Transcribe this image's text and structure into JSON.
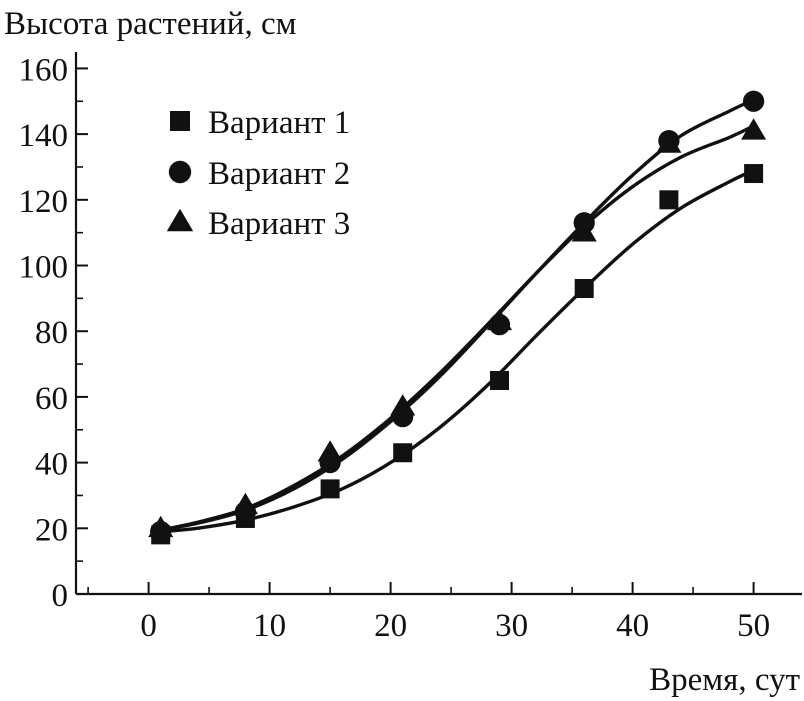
{
  "chart_data": {
    "type": "scatter",
    "ylabel": "Высота растений, см",
    "xlabel": "Время, сут",
    "xlim": [
      -6,
      54
    ],
    "ylim": [
      0,
      165
    ],
    "x_ticks": [
      0,
      10,
      20,
      30,
      40,
      50
    ],
    "y_ticks": [
      0,
      20,
      40,
      60,
      80,
      100,
      120,
      140,
      160
    ],
    "grid": false,
    "legend_position": "top-left",
    "series": [
      {
        "name": "Вариант 1",
        "marker": "square",
        "x": [
          1,
          8,
          15,
          21,
          29,
          36,
          43,
          50
        ],
        "y": [
          18,
          23,
          32,
          43,
          65,
          93,
          120,
          128
        ],
        "fit": [
          [
            1,
            19.0
          ],
          [
            4,
            20.0
          ],
          [
            8,
            22.5
          ],
          [
            12,
            26.5
          ],
          [
            16,
            32.0
          ],
          [
            20,
            40.0
          ],
          [
            24,
            50.5
          ],
          [
            28,
            63.5
          ],
          [
            32,
            78.5
          ],
          [
            36,
            93.0
          ],
          [
            40,
            106.5
          ],
          [
            44,
            117.5
          ],
          [
            48,
            125.5
          ],
          [
            50,
            129.0
          ]
        ]
      },
      {
        "name": "Вариант 2",
        "marker": "circle",
        "x": [
          1,
          8,
          15,
          21,
          29,
          36,
          43,
          50
        ],
        "y": [
          19,
          25,
          40,
          54,
          82,
          113,
          138,
          150
        ],
        "fit": [
          [
            1,
            19.5
          ],
          [
            4,
            21.5
          ],
          [
            8,
            25.5
          ],
          [
            12,
            32.0
          ],
          [
            16,
            41.0
          ],
          [
            20,
            52.5
          ],
          [
            24,
            66.0
          ],
          [
            28,
            81.5
          ],
          [
            32,
            97.5
          ],
          [
            36,
            113.0
          ],
          [
            40,
            127.5
          ],
          [
            44,
            139.5
          ],
          [
            48,
            147.0
          ],
          [
            50,
            150.5
          ]
        ]
      },
      {
        "name": "Вариант 3",
        "marker": "triangle",
        "x": [
          1,
          8,
          15,
          21,
          29,
          36,
          43,
          50
        ],
        "y": [
          20,
          27,
          43,
          57,
          83,
          110,
          137,
          141
        ],
        "fit": [
          [
            1,
            19.5
          ],
          [
            4,
            21.8
          ],
          [
            8,
            26.0
          ],
          [
            12,
            33.0
          ],
          [
            16,
            42.0
          ],
          [
            20,
            53.5
          ],
          [
            24,
            67.0
          ],
          [
            28,
            82.0
          ],
          [
            32,
            97.5
          ],
          [
            36,
            112.0
          ],
          [
            40,
            124.0
          ],
          [
            44,
            133.0
          ],
          [
            48,
            139.0
          ],
          [
            50,
            142.5
          ]
        ]
      }
    ]
  }
}
